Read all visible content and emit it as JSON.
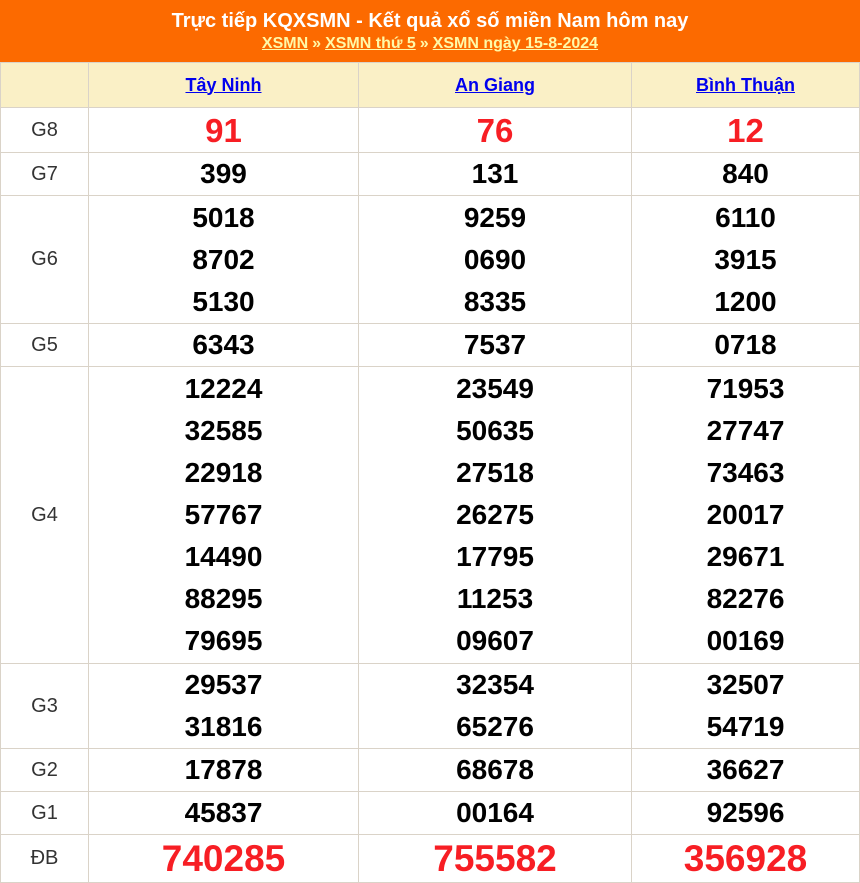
{
  "colors": {
    "orange": "#FC6A00",
    "cream": "#FAF0C6",
    "red": "#F71E24",
    "blue": "#0000EE",
    "border": "#DAD3C8",
    "label": "#333333",
    "breadcrumb-yellow": "#FFF9A8"
  },
  "header": {
    "title": "Trực tiếp KQXSMN - Kết quả xổ số miền Nam hôm nay",
    "separator": "»",
    "breadcrumb": [
      {
        "label": "XSMN"
      },
      {
        "label": "XSMN thứ 5"
      },
      {
        "label": "XSMN ngày 15-8-2024"
      }
    ]
  },
  "table": {
    "provinces": [
      {
        "label": "Tây Ninh"
      },
      {
        "label": "An Giang"
      },
      {
        "label": "Bình Thuận"
      }
    ],
    "rows": [
      {
        "prize": "G8",
        "key": "g8",
        "highlight": true,
        "values": [
          [
            "91"
          ],
          [
            "76"
          ],
          [
            "12"
          ]
        ]
      },
      {
        "prize": "G7",
        "key": "g7",
        "highlight": false,
        "values": [
          [
            "399"
          ],
          [
            "131"
          ],
          [
            "840"
          ]
        ]
      },
      {
        "prize": "G6",
        "key": "g6",
        "highlight": false,
        "values": [
          [
            "5018",
            "8702",
            "5130"
          ],
          [
            "9259",
            "0690",
            "8335"
          ],
          [
            "6110",
            "3915",
            "1200"
          ]
        ]
      },
      {
        "prize": "G5",
        "key": "g5",
        "highlight": false,
        "values": [
          [
            "6343"
          ],
          [
            "7537"
          ],
          [
            "0718"
          ]
        ]
      },
      {
        "prize": "G4",
        "key": "g4",
        "highlight": false,
        "values": [
          [
            "12224",
            "32585",
            "22918",
            "57767",
            "14490",
            "88295",
            "79695"
          ],
          [
            "23549",
            "50635",
            "27518",
            "26275",
            "17795",
            "11253",
            "09607"
          ],
          [
            "71953",
            "27747",
            "73463",
            "20017",
            "29671",
            "82276",
            "00169"
          ]
        ]
      },
      {
        "prize": "G3",
        "key": "g3",
        "highlight": false,
        "values": [
          [
            "29537",
            "31816"
          ],
          [
            "32354",
            "65276"
          ],
          [
            "32507",
            "54719"
          ]
        ]
      },
      {
        "prize": "G2",
        "key": "g2",
        "highlight": false,
        "values": [
          [
            "17878"
          ],
          [
            "68678"
          ],
          [
            "36627"
          ]
        ]
      },
      {
        "prize": "G1",
        "key": "g1",
        "highlight": false,
        "values": [
          [
            "45837"
          ],
          [
            "00164"
          ],
          [
            "92596"
          ]
        ]
      },
      {
        "prize": "ĐB",
        "key": "db",
        "highlight": true,
        "values": [
          [
            "740285"
          ],
          [
            "755582"
          ],
          [
            "356928"
          ]
        ]
      }
    ]
  }
}
